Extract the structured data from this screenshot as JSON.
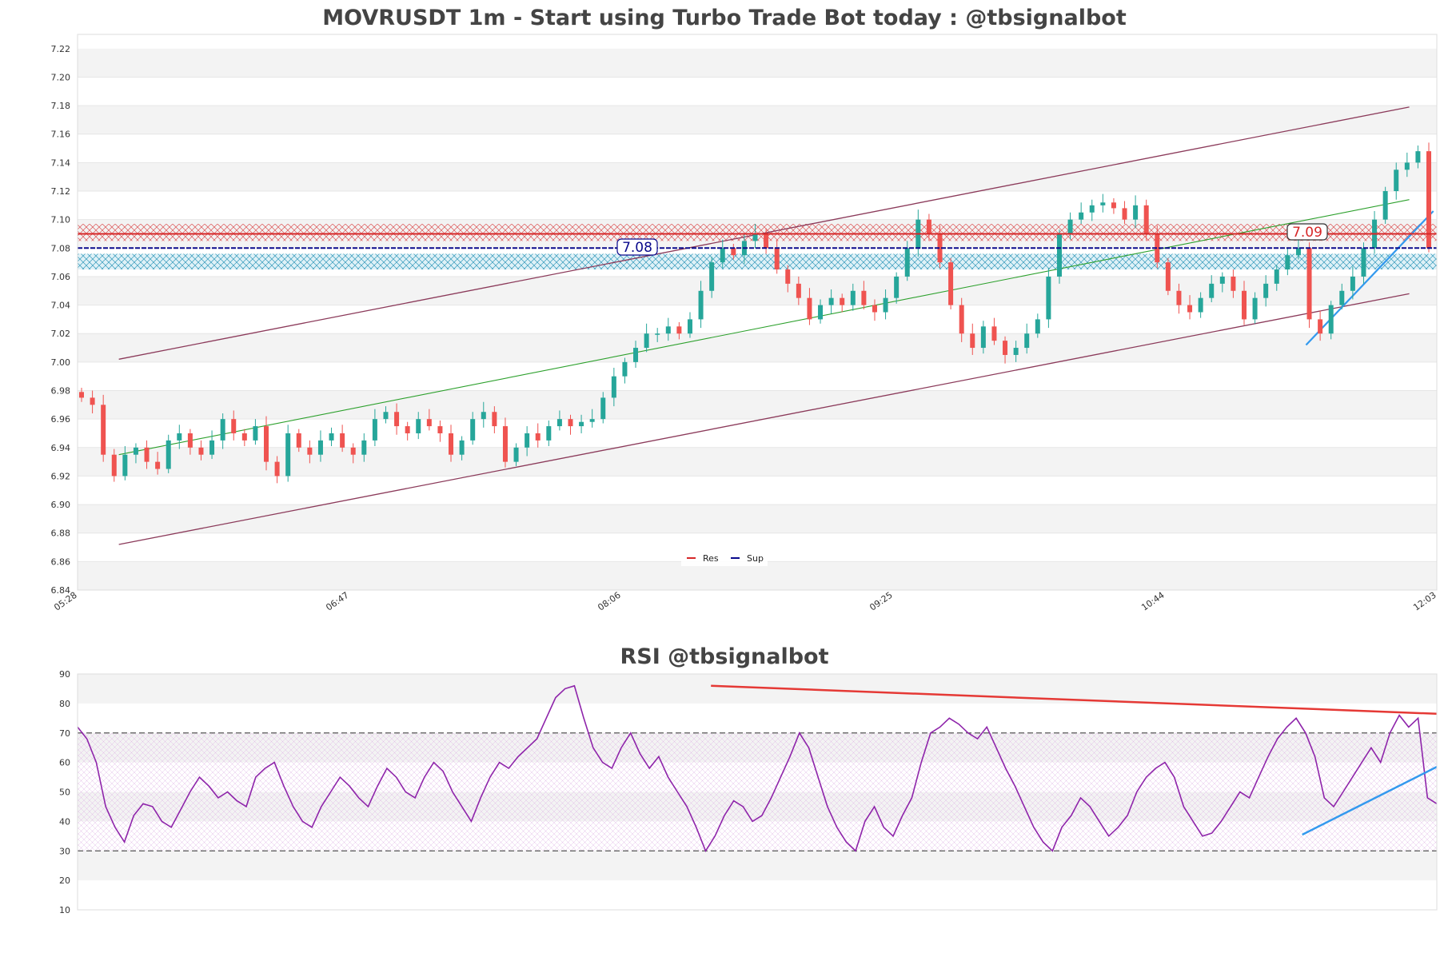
{
  "chart_data": [
    {
      "type": "candlestick",
      "title": "MOVRUSDT 1m - Start using Turbo Trade Bot today : @tbsignalbot",
      "ylim": [
        6.84,
        7.23
      ],
      "y_ticks": [
        "6.84",
        "6.86",
        "6.88",
        "6.90",
        "6.92",
        "6.94",
        "6.96",
        "6.98",
        "7.00",
        "7.02",
        "7.04",
        "7.06",
        "7.08",
        "7.10",
        "7.12",
        "7.14",
        "7.16",
        "7.18",
        "7.20",
        "7.22"
      ],
      "x_ticks": [
        "05:28",
        "06:47",
        "08:06",
        "09:25",
        "10:44",
        "12:03"
      ],
      "x_range_minutes": [
        328,
        723
      ],
      "closes_approx": [
        6.975,
        6.97,
        6.935,
        6.92,
        6.935,
        6.94,
        6.93,
        6.925,
        6.945,
        6.95,
        6.94,
        6.935,
        6.945,
        6.96,
        6.95,
        6.945,
        6.955,
        6.93,
        6.92,
        6.95,
        6.94,
        6.935,
        6.945,
        6.95,
        6.94,
        6.935,
        6.945,
        6.96,
        6.965,
        6.955,
        6.95,
        6.96,
        6.955,
        6.95,
        6.935,
        6.945,
        6.96,
        6.965,
        6.955,
        6.93,
        6.94,
        6.95,
        6.945,
        6.955,
        6.96,
        6.955,
        6.958,
        6.96,
        6.975,
        6.99,
        7.0,
        7.01,
        7.02,
        7.02,
        7.025,
        7.02,
        7.03,
        7.05,
        7.07,
        7.08,
        7.075,
        7.085,
        7.09,
        7.08,
        7.065,
        7.055,
        7.045,
        7.03,
        7.04,
        7.045,
        7.04,
        7.05,
        7.04,
        7.035,
        7.045,
        7.06,
        7.08,
        7.1,
        7.09,
        7.07,
        7.04,
        7.02,
        7.01,
        7.025,
        7.015,
        7.005,
        7.01,
        7.02,
        7.03,
        7.06,
        7.09,
        7.1,
        7.105,
        7.11,
        7.112,
        7.108,
        7.1,
        7.11,
        7.09,
        7.07,
        7.05,
        7.04,
        7.035,
        7.045,
        7.055,
        7.06,
        7.05,
        7.03,
        7.045,
        7.055,
        7.065,
        7.075,
        7.08,
        7.03,
        7.02,
        7.04,
        7.05,
        7.06,
        7.08,
        7.1,
        7.12,
        7.135,
        7.14,
        7.148,
        7.08
      ],
      "annotations": {
        "res_label": "7.09",
        "sup_label": "7.08"
      },
      "levels": {
        "resistance": 7.09,
        "support": 7.08,
        "res_zone": [
          7.085,
          7.097
        ],
        "sup_zone": [
          7.065,
          7.076
        ]
      },
      "channel": {
        "upper": [
          [
            340,
            7.002
          ],
          [
            715,
            7.179
          ]
        ],
        "lower": [
          [
            340,
            6.872
          ],
          [
            715,
            7.048
          ]
        ],
        "mid": [
          [
            340,
            6.935
          ],
          [
            715,
            7.114
          ]
        ]
      },
      "trend_line": [
        [
          685,
          7.012
        ],
        [
          722,
          7.106
        ]
      ],
      "legend": [
        {
          "label": "Res",
          "color": "#d62728"
        },
        {
          "label": "Sup",
          "color": "#0a0a8c"
        }
      ],
      "legend_position": "bottom-center"
    },
    {
      "type": "line",
      "title": "RSI @tbsignalbot",
      "ylim": [
        10,
        90
      ],
      "y_ticks": [
        "10",
        "20",
        "30",
        "40",
        "50",
        "60",
        "70",
        "80",
        "90"
      ],
      "reference_levels": [
        30,
        70
      ],
      "values_approx": [
        72,
        68,
        60,
        45,
        38,
        33,
        42,
        46,
        45,
        40,
        38,
        44,
        50,
        55,
        52,
        48,
        50,
        47,
        45,
        55,
        58,
        60,
        52,
        45,
        40,
        38,
        45,
        50,
        55,
        52,
        48,
        45,
        52,
        58,
        55,
        50,
        48,
        55,
        60,
        57,
        50,
        45,
        40,
        48,
        55,
        60,
        58,
        62,
        65,
        68,
        75,
        82,
        85,
        86,
        75,
        65,
        60,
        58,
        65,
        70,
        63,
        58,
        62,
        55,
        50,
        45,
        38,
        30,
        35,
        42,
        47,
        45,
        40,
        42,
        48,
        55,
        62,
        70,
        65,
        55,
        45,
        38,
        33,
        30,
        40,
        45,
        38,
        35,
        42,
        48,
        60,
        70,
        72,
        75,
        73,
        70,
        68,
        72,
        65,
        58,
        52,
        45,
        38,
        33,
        30,
        38,
        42,
        48,
        45,
        40,
        35,
        38,
        42,
        50,
        55,
        58,
        60,
        55,
        45,
        40,
        35,
        36,
        40,
        45,
        50,
        48,
        55,
        62,
        68,
        72,
        75,
        70,
        62,
        48,
        45,
        50,
        55,
        60,
        65,
        60,
        70,
        76,
        72,
        75,
        48,
        46
      ],
      "resistance_line": [
        [
          0.466,
          86
        ],
        [
          1.0,
          76.5
        ]
      ],
      "support_line": [
        [
          0.901,
          35.5
        ],
        [
          1.0,
          58.5
        ]
      ]
    }
  ],
  "colors": {
    "up": "#26a69a",
    "down": "#ef5350",
    "res": "#d62728",
    "sup": "#0a0a8c",
    "channel": "#8b3a5a",
    "midline": "#2ca02c",
    "trend": "#3399ee",
    "rsi": "#8e24aa",
    "title": "#444444"
  }
}
